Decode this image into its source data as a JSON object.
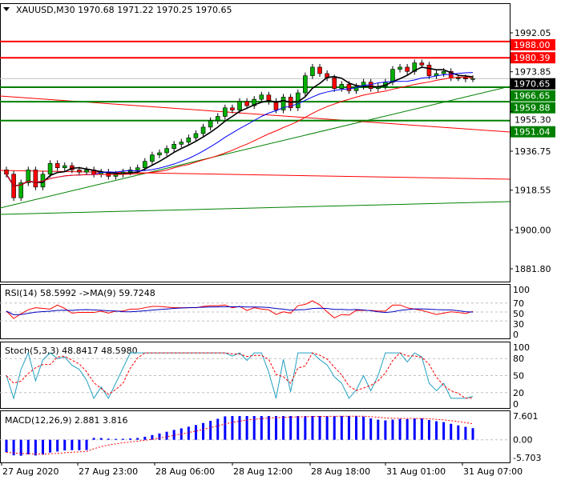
{
  "chart_data": {
    "type": "candlestick",
    "title": "XAUUSD,M30  1970.68 1971.22 1970.25 1970.65",
    "symbol": "XAUUSD,M30",
    "ohlc_text": "1970.68 1971.22 1970.25 1970.65",
    "ylim": [
      1870,
      2000
    ],
    "price_ticks": [
      "1992.05",
      "1973.85",
      "1955.30",
      "1936.75",
      "1918.55",
      "1900.00",
      "1881.80"
    ],
    "x_labels": [
      "27 Aug 2020",
      "27 Aug 23:00",
      "28 Aug 06:00",
      "28 Aug 12:00",
      "28 Aug 18:00",
      "31 Aug 01:00",
      "31 Aug 07:00"
    ],
    "closes": [
      1926,
      1915,
      1922,
      1928,
      1920,
      1926,
      1931,
      1929,
      1930,
      1928,
      1927,
      1928,
      1926,
      1927,
      1925,
      1926,
      1927,
      1928,
      1929,
      1932,
      1935,
      1936,
      1938,
      1940,
      1941,
      1943,
      1945,
      1948,
      1951,
      1953,
      1957,
      1956,
      1960,
      1958,
      1961,
      1963,
      1960,
      1956,
      1962,
      1957,
      1964,
      1972,
      1976,
      1973,
      1971,
      1966,
      1968,
      1965,
      1967,
      1969,
      1966,
      1967,
      1969,
      1975,
      1976,
      1974,
      1978,
      1977,
      1972,
      1973,
      1974,
      1971,
      1971,
      1970.5,
      1970.65
    ],
    "levels": [
      {
        "label": "1988.00",
        "price": 1988.0,
        "color": "#ff0000"
      },
      {
        "label": "1980.39",
        "price": 1980.39,
        "color": "#ff0000"
      },
      {
        "label": "1970.65",
        "price": 1970.65,
        "color": "#000000"
      },
      {
        "label": "1966.65",
        "price": 1966.65,
        "color": "#008000"
      },
      {
        "label": "1959.88",
        "price": 1959.88,
        "color": "#008000"
      },
      {
        "label": "1951.04",
        "price": 1951.04,
        "color": "#008000"
      }
    ],
    "rsi": {
      "label": "RSI(14) 58.5992  ->MA(9) 59.7248",
      "ticks": [
        "100",
        "70",
        "50",
        "30",
        "0"
      ]
    },
    "stoch": {
      "label": "Stoch(5,3,3) 48.8417 48.5980",
      "ticks": [
        "100",
        "80",
        "50",
        "20",
        "0"
      ]
    },
    "macd": {
      "label": "MACD(12,26,9) 2.881 3.816",
      "ticks": [
        "7.601",
        "0.00",
        "-5.703"
      ]
    }
  }
}
